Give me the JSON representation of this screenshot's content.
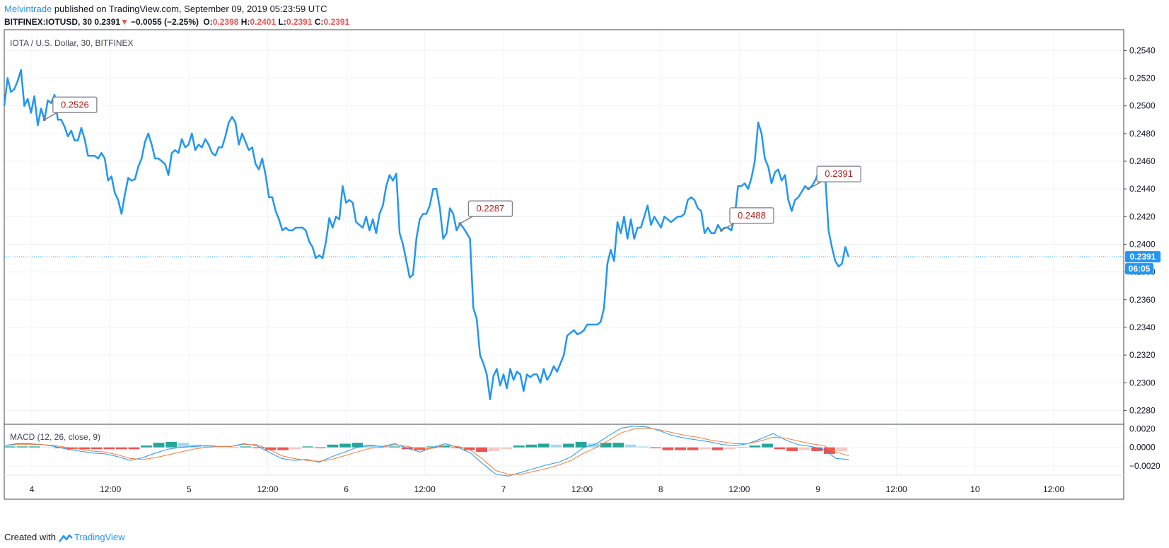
{
  "header": {
    "author": "Melvintrade",
    "published": "published on TradingView.com, September 09, 2019 05:23:59 UTC",
    "symbol_line": "BITFINEX:IOTUSD, 30",
    "price": "0.2391",
    "arrow": "▼",
    "change": "−0.0055 (−2.25%)",
    "o_label": "O:",
    "o_val": "0.2398",
    "h_label": "H:",
    "h_val": "0.2401",
    "l_label": "L:",
    "l_val": "0.2391",
    "c_label": "C:",
    "c_val": "0.2391"
  },
  "footer": {
    "created": "Created with",
    "brand": "TradingView"
  },
  "chart_data": [
    {
      "type": "line",
      "title": "IOTA / U.S. Dollar, 30, BITFINEX",
      "color": "#2196f3",
      "ylim": [
        0.227,
        0.2555
      ],
      "y_ticks": [
        "0.2540",
        "0.2520",
        "0.2500",
        "0.2480",
        "0.2460",
        "0.2440",
        "0.2420",
        "0.2400",
        "0.2380",
        "0.2360",
        "0.2340",
        "0.2320",
        "0.2300",
        "0.2280"
      ],
      "x_ticks": [
        "4",
        "12:00",
        "5",
        "12:00",
        "6",
        "12:00",
        "7",
        "12:00",
        "8",
        "12:00",
        "9",
        "12:00",
        "10",
        "12:00"
      ],
      "last_price_label": "0.2391",
      "countdown_label": "06:05",
      "callouts": [
        {
          "label": "0.2526",
          "index": 12
        },
        {
          "label": "0.2287",
          "index": 136
        },
        {
          "label": "0.2488",
          "index": 214
        },
        {
          "label": "0.2391",
          "index": 240
        }
      ],
      "values": [
        0.25,
        0.252,
        0.251,
        0.2512,
        0.2518,
        0.2526,
        0.25,
        0.2505,
        0.2495,
        0.2507,
        0.2486,
        0.2498,
        0.249,
        0.2504,
        0.2502,
        0.2508,
        0.249,
        0.249,
        0.2485,
        0.2478,
        0.2482,
        0.2475,
        0.2475,
        0.2484,
        0.2476,
        0.2464,
        0.2464,
        0.2464,
        0.2462,
        0.2466,
        0.2462,
        0.2446,
        0.2449,
        0.2437,
        0.2432,
        0.2422,
        0.2436,
        0.2448,
        0.2446,
        0.2447,
        0.2456,
        0.2462,
        0.2474,
        0.248,
        0.2472,
        0.2462,
        0.2462,
        0.246,
        0.2458,
        0.245,
        0.2466,
        0.2468,
        0.2466,
        0.2476,
        0.247,
        0.2472,
        0.248,
        0.2468,
        0.2472,
        0.247,
        0.2476,
        0.2472,
        0.2466,
        0.2464,
        0.247,
        0.247,
        0.2478,
        0.2488,
        0.2492,
        0.2488,
        0.2472,
        0.248,
        0.2474,
        0.2468,
        0.247,
        0.2458,
        0.2454,
        0.2462,
        0.245,
        0.2434,
        0.2434,
        0.2424,
        0.2418,
        0.241,
        0.2412,
        0.241,
        0.241,
        0.2412,
        0.2412,
        0.2412,
        0.241,
        0.2402,
        0.2398,
        0.239,
        0.2392,
        0.239,
        0.2402,
        0.2419,
        0.2412,
        0.242,
        0.2418,
        0.2442,
        0.243,
        0.2432,
        0.243,
        0.2416,
        0.2414,
        0.2412,
        0.242,
        0.241,
        0.2418,
        0.2408,
        0.2422,
        0.2428,
        0.2442,
        0.245,
        0.2446,
        0.2451,
        0.2408,
        0.24,
        0.2388,
        0.2376,
        0.2378,
        0.2404,
        0.2418,
        0.2422,
        0.2422,
        0.2428,
        0.244,
        0.244,
        0.2426,
        0.2404,
        0.2408,
        0.2426,
        0.2422,
        0.241,
        0.2415,
        0.2412,
        0.2408,
        0.2404,
        0.2354,
        0.2346,
        0.232,
        0.2314,
        0.2306,
        0.2288,
        0.2305,
        0.231,
        0.2298,
        0.2306,
        0.2296,
        0.231,
        0.2302,
        0.2308,
        0.2306,
        0.2294,
        0.2306,
        0.2304,
        0.2306,
        0.2306,
        0.23,
        0.231,
        0.2302,
        0.2306,
        0.2312,
        0.2308,
        0.2314,
        0.232,
        0.2334,
        0.2336,
        0.2338,
        0.2335,
        0.2336,
        0.2338,
        0.2342,
        0.2342,
        0.2342,
        0.2342,
        0.2344,
        0.2354,
        0.2386,
        0.2396,
        0.2388,
        0.2416,
        0.2408,
        0.242,
        0.2404,
        0.2418,
        0.2404,
        0.2412,
        0.2412,
        0.242,
        0.2428,
        0.2414,
        0.242,
        0.2416,
        0.2412,
        0.242,
        0.2418,
        0.2416,
        0.2418,
        0.242,
        0.242,
        0.2422,
        0.2432,
        0.2434,
        0.2432,
        0.2426,
        0.2424,
        0.2408,
        0.2412,
        0.2408,
        0.2408,
        0.2414,
        0.241,
        0.2412,
        0.2412,
        0.241,
        0.242,
        0.2442,
        0.2442,
        0.2444,
        0.244,
        0.2448,
        0.246,
        0.2488,
        0.248,
        0.2462,
        0.2456,
        0.2444,
        0.2452,
        0.2454,
        0.2446,
        0.245,
        0.2432,
        0.2424,
        0.2432,
        0.2434,
        0.2438,
        0.2442,
        0.244,
        0.2442,
        0.2446,
        0.2452,
        0.2452,
        0.245,
        0.241,
        0.2398,
        0.2388,
        0.2384,
        0.2386,
        0.2398,
        0.2391
      ]
    },
    {
      "type": "line",
      "title": "MACD (12, 26, close, 9)",
      "ylim": [
        -0.003,
        0.0025
      ],
      "y_ticks": [
        "0.0020",
        "0.0000",
        "−0.0020"
      ],
      "colors": {
        "macd": "#2196f3",
        "signal": "#f57c3c",
        "hist_up": "#26a69a",
        "hist_up_light": "#a5d8f0",
        "hist_down": "#ef5350",
        "hist_down_light": "#f7c9c6"
      },
      "series": [
        {
          "name": "",
          "key": "macd",
          "values": [
            0.0002,
            0.0004,
            0.0004,
            0.0003,
            0.0001,
            -0.0002,
            -0.0004,
            -0.0006,
            -0.0007,
            -0.001,
            -0.0014,
            -0.0011,
            -0.0006,
            -0.0002,
            0.0,
            0.0001,
            0.0002,
            0.0001,
            0.0001,
            0.0004,
            0.0002,
            -0.0005,
            -0.0012,
            -0.0014,
            -0.0013,
            -0.0016,
            -0.001,
            -0.0005,
            0.0,
            0.0002,
            0.0001,
            0.0004,
            -0.0001,
            -0.0005,
            0.0,
            0.0004,
            0.0,
            -0.0006,
            -0.0018,
            -0.0029,
            -0.0031,
            -0.0027,
            -0.0023,
            -0.0019,
            -0.0016,
            -0.001,
            0.0,
            0.0004,
            0.0013,
            0.0021,
            0.0023,
            0.0022,
            0.0018,
            0.0013,
            0.001,
            0.0008,
            0.0006,
            0.0003,
            0.0002,
            0.0004,
            0.0009,
            0.0015,
            0.0008,
            0.0003,
            0.0001,
            -0.0002,
            -0.0012,
            -0.0013
          ]
        },
        {
          "name": "",
          "key": "signal",
          "values": [
            0.0002,
            0.0003,
            0.0003,
            0.0003,
            0.0002,
            0.0,
            -0.0002,
            -0.0004,
            -0.0005,
            -0.0008,
            -0.0012,
            -0.0013,
            -0.0011,
            -0.0008,
            -0.0005,
            -0.0002,
            0.0,
            0.0001,
            0.0001,
            0.0003,
            0.0003,
            -0.0002,
            -0.0009,
            -0.0012,
            -0.0014,
            -0.0015,
            -0.0013,
            -0.0009,
            -0.0005,
            -0.0001,
            0.0,
            0.0003,
            0.0001,
            -0.0002,
            -0.0001,
            0.0002,
            0.0001,
            -0.0003,
            -0.0013,
            -0.0025,
            -0.0029,
            -0.0029,
            -0.0026,
            -0.0023,
            -0.0019,
            -0.0014,
            -0.0006,
            0.0,
            0.0008,
            0.0016,
            0.002,
            0.0021,
            0.0019,
            0.0016,
            0.0013,
            0.0011,
            0.0008,
            0.0006,
            0.0004,
            0.0004,
            0.0007,
            0.0011,
            0.001,
            0.0007,
            0.0004,
            0.0002,
            -0.0005,
            -0.0009
          ]
        }
      ],
      "histogram": [
        0.0001,
        0.0001,
        0.0001,
        0.0,
        -0.0001,
        -0.0002,
        -0.0002,
        -0.0002,
        -0.0002,
        -0.0002,
        -0.0002,
        0.0002,
        0.0005,
        0.0006,
        0.0005,
        0.0003,
        0.0002,
        0.0,
        0.0,
        0.0001,
        -0.0001,
        -0.0003,
        -0.0003,
        -0.0002,
        0.0001,
        -0.0001,
        0.0003,
        0.0004,
        0.0005,
        0.0003,
        0.0001,
        0.0001,
        -0.0002,
        -0.0003,
        0.0001,
        0.0002,
        -0.0001,
        -0.0003,
        -0.0005,
        -0.0004,
        -0.0002,
        0.0002,
        0.0003,
        0.0004,
        0.0003,
        0.0004,
        0.0006,
        0.0004,
        0.0005,
        0.0005,
        0.0003,
        0.0001,
        -0.0001,
        -0.0003,
        -0.0003,
        -0.0003,
        -0.0002,
        -0.0003,
        -0.0002,
        0.0,
        0.0002,
        0.0004,
        -0.0002,
        -0.0004,
        -0.0003,
        -0.0004,
        -0.0007,
        -0.0004
      ]
    }
  ]
}
